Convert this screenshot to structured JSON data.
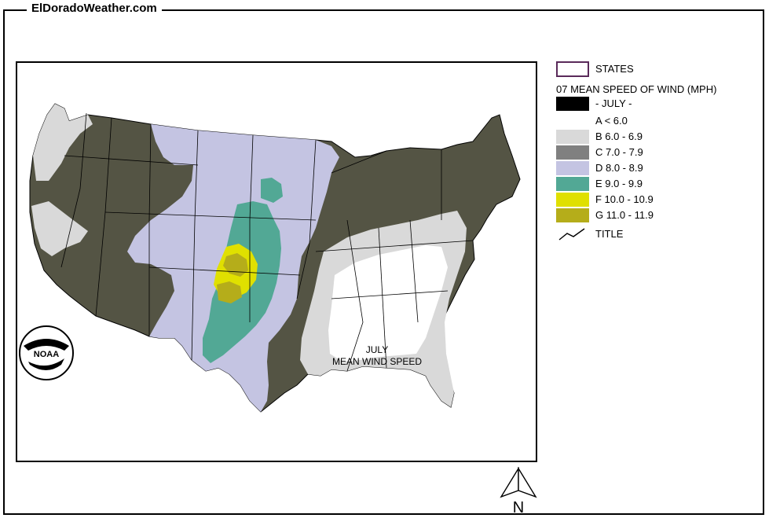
{
  "site": {
    "title": "ElDoradoWeather.com"
  },
  "map": {
    "caption_line1": "JULY",
    "caption_line2": "MEAN WIND SPEED",
    "logo_text": "NOAA",
    "north_label": "N"
  },
  "legend": {
    "states_label": "STATES",
    "heading": "07 MEAN SPEED OF WIND (MPH)",
    "month_label": "- JULY -",
    "classes": [
      {
        "label": "A < 6.0",
        "color": "#ffffff"
      },
      {
        "label": "B 6.0 - 6.9",
        "color": "#d9d9d9"
      },
      {
        "label": "C 7.0 - 7.9",
        "color": "#808080"
      },
      {
        "label": "D 8.0 - 8.9",
        "color": "#c4c4e2"
      },
      {
        "label": "E 9.0 - 9.9",
        "color": "#52a895"
      },
      {
        "label": "F 10.0 - 10.9",
        "color": "#e0e000"
      },
      {
        "label": "G 11.0 - 11.9",
        "color": "#b5ad1a"
      }
    ],
    "title_label": "TITLE"
  },
  "colors": {
    "frame": "#000000",
    "state_outline": "#000000",
    "states_swatch_border": "#5a2a5a",
    "month_swatch": "#000000",
    "dark_olive": "#545444",
    "background": "#ffffff"
  }
}
